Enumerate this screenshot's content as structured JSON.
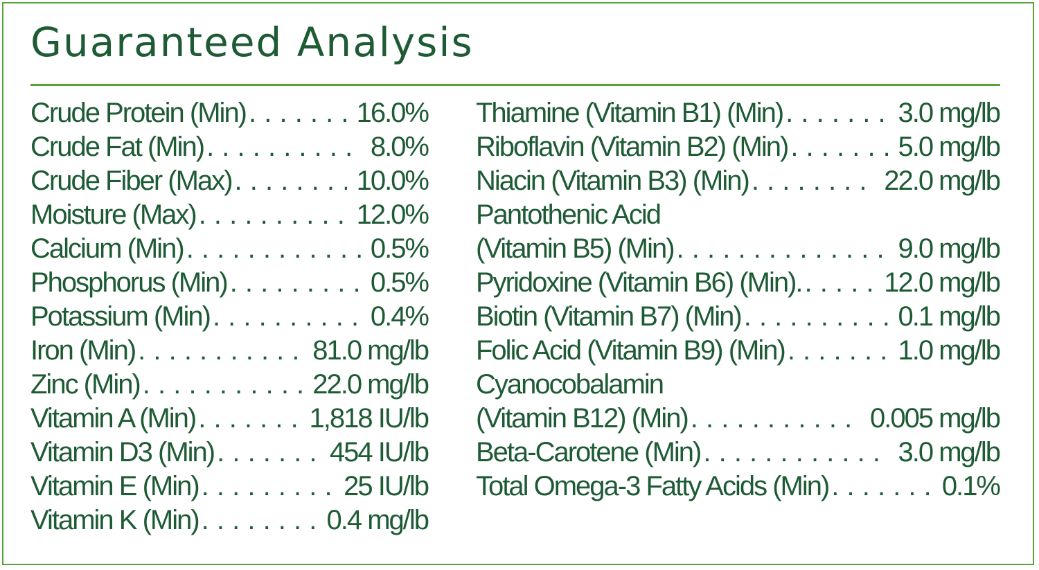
{
  "title": "Guaranteed Analysis",
  "colors": {
    "text": "#1e5b35",
    "accent": "#58a23a"
  },
  "left": [
    {
      "label": "Crude Protein (Min)",
      "value": "16.0%"
    },
    {
      "label": "Crude Fat (Min)",
      "value": "8.0%"
    },
    {
      "label": "Crude Fiber (Max)",
      "value": "10.0%"
    },
    {
      "label": "Moisture (Max)",
      "value": "12.0%"
    },
    {
      "label": "Calcium (Min)",
      "value": "0.5%"
    },
    {
      "label": "Phosphorus (Min)",
      "value": "0.5%"
    },
    {
      "label": "Potassium (Min)",
      "value": "0.4%"
    },
    {
      "label": "Iron (Min)",
      "value": "81.0 mg/lb"
    },
    {
      "label": "Zinc (Min)",
      "value": "22.0 mg/lb"
    },
    {
      "label": "Vitamin A (Min)",
      "value": "1,818 IU/lb"
    },
    {
      "label": "Vitamin D3 (Min)",
      "value": "454 IU/lb"
    },
    {
      "label": "Vitamin E (Min)",
      "value": "25 IU/lb"
    },
    {
      "label": "Vitamin K (Min)",
      "value": "0.4 mg/lb"
    }
  ],
  "right": [
    {
      "label": "Thiamine (Vitamin B1) (Min)",
      "value": "3.0 mg/lb"
    },
    {
      "label": "Riboflavin (Vitamin B2) (Min)",
      "value": "5.0 mg/lb"
    },
    {
      "label": "Niacin (Vitamin B3) (Min)",
      "value": "22.0 mg/lb"
    },
    {
      "heading": "Pantothenic Acid",
      "label": "(Vitamin B5) (Min)",
      "value": "9.0 mg/lb"
    },
    {
      "label": "Pyridoxine (Vitamin B6) (Min).",
      "value": "12.0 mg/lb"
    },
    {
      "label": "Biotin (Vitamin B7) (Min)",
      "value": "0.1 mg/lb"
    },
    {
      "label": "Folic Acid (Vitamin B9) (Min)",
      "value": "1.0 mg/lb"
    },
    {
      "heading": "Cyanocobalamin",
      "label": "(Vitamin B12) (Min)",
      "value": "0.005 mg/lb"
    },
    {
      "label": "Beta-Carotene (Min)",
      "value": "3.0 mg/lb"
    },
    {
      "label": "Total Omega-3 Fatty Acids (Min)",
      "value": "0.1%"
    }
  ]
}
